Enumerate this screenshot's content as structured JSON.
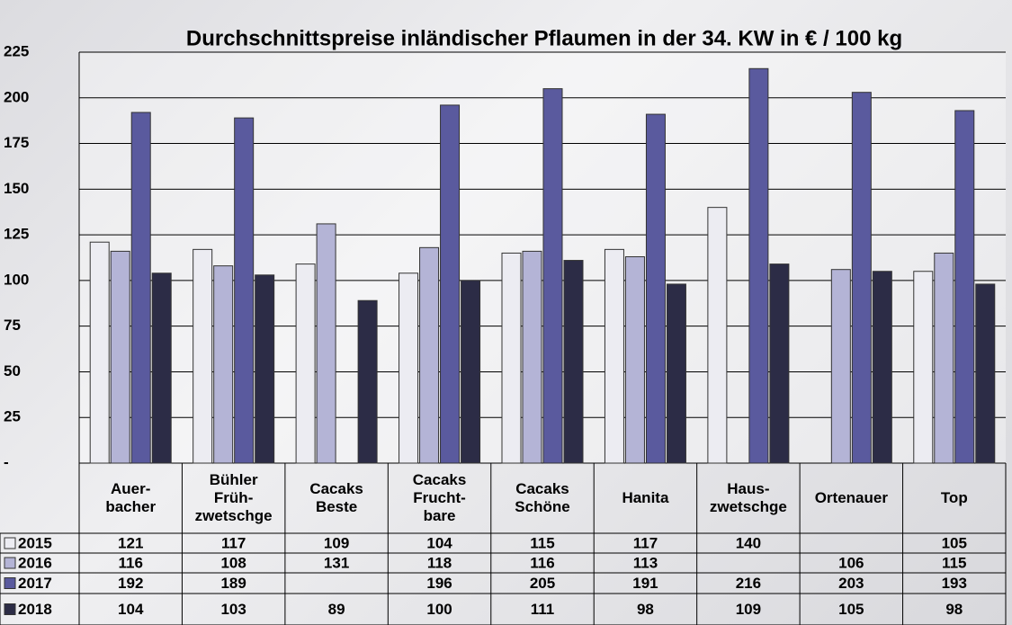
{
  "chart_data": {
    "type": "bar",
    "title": "Durchschnittspreise inländischer Pflaumen in der 34. KW in € / 100 kg",
    "categories": [
      "Auer-\nbacher",
      "Bühler\nFrüh-\nzwetschge",
      "Cacaks\nBeste",
      "Cacaks\nFrucht-\nbare",
      "Cacaks\nSchöne",
      "Hanita",
      "Haus-\nzwetschge",
      "Ortenauer",
      "Top"
    ],
    "series": [
      {
        "name": "2015",
        "color": "#ececf2",
        "values": [
          121,
          117,
          109,
          104,
          115,
          117,
          140,
          null,
          105
        ]
      },
      {
        "name": "2016",
        "color": "#b4b4d6",
        "values": [
          116,
          108,
          131,
          118,
          116,
          113,
          null,
          106,
          115
        ]
      },
      {
        "name": "2017",
        "color": "#5a5a9e",
        "values": [
          192,
          189,
          null,
          196,
          205,
          191,
          216,
          203,
          193
        ]
      },
      {
        "name": "2018",
        "color": "#2c2c46",
        "values": [
          104,
          103,
          89,
          100,
          111,
          98,
          109,
          105,
          98
        ]
      }
    ],
    "ylim": [
      0,
      225
    ],
    "yticks": [
      {
        "value": 0,
        "label": "-"
      },
      25,
      50,
      75,
      100,
      125,
      150,
      175,
      200,
      225
    ],
    "grid": true
  }
}
